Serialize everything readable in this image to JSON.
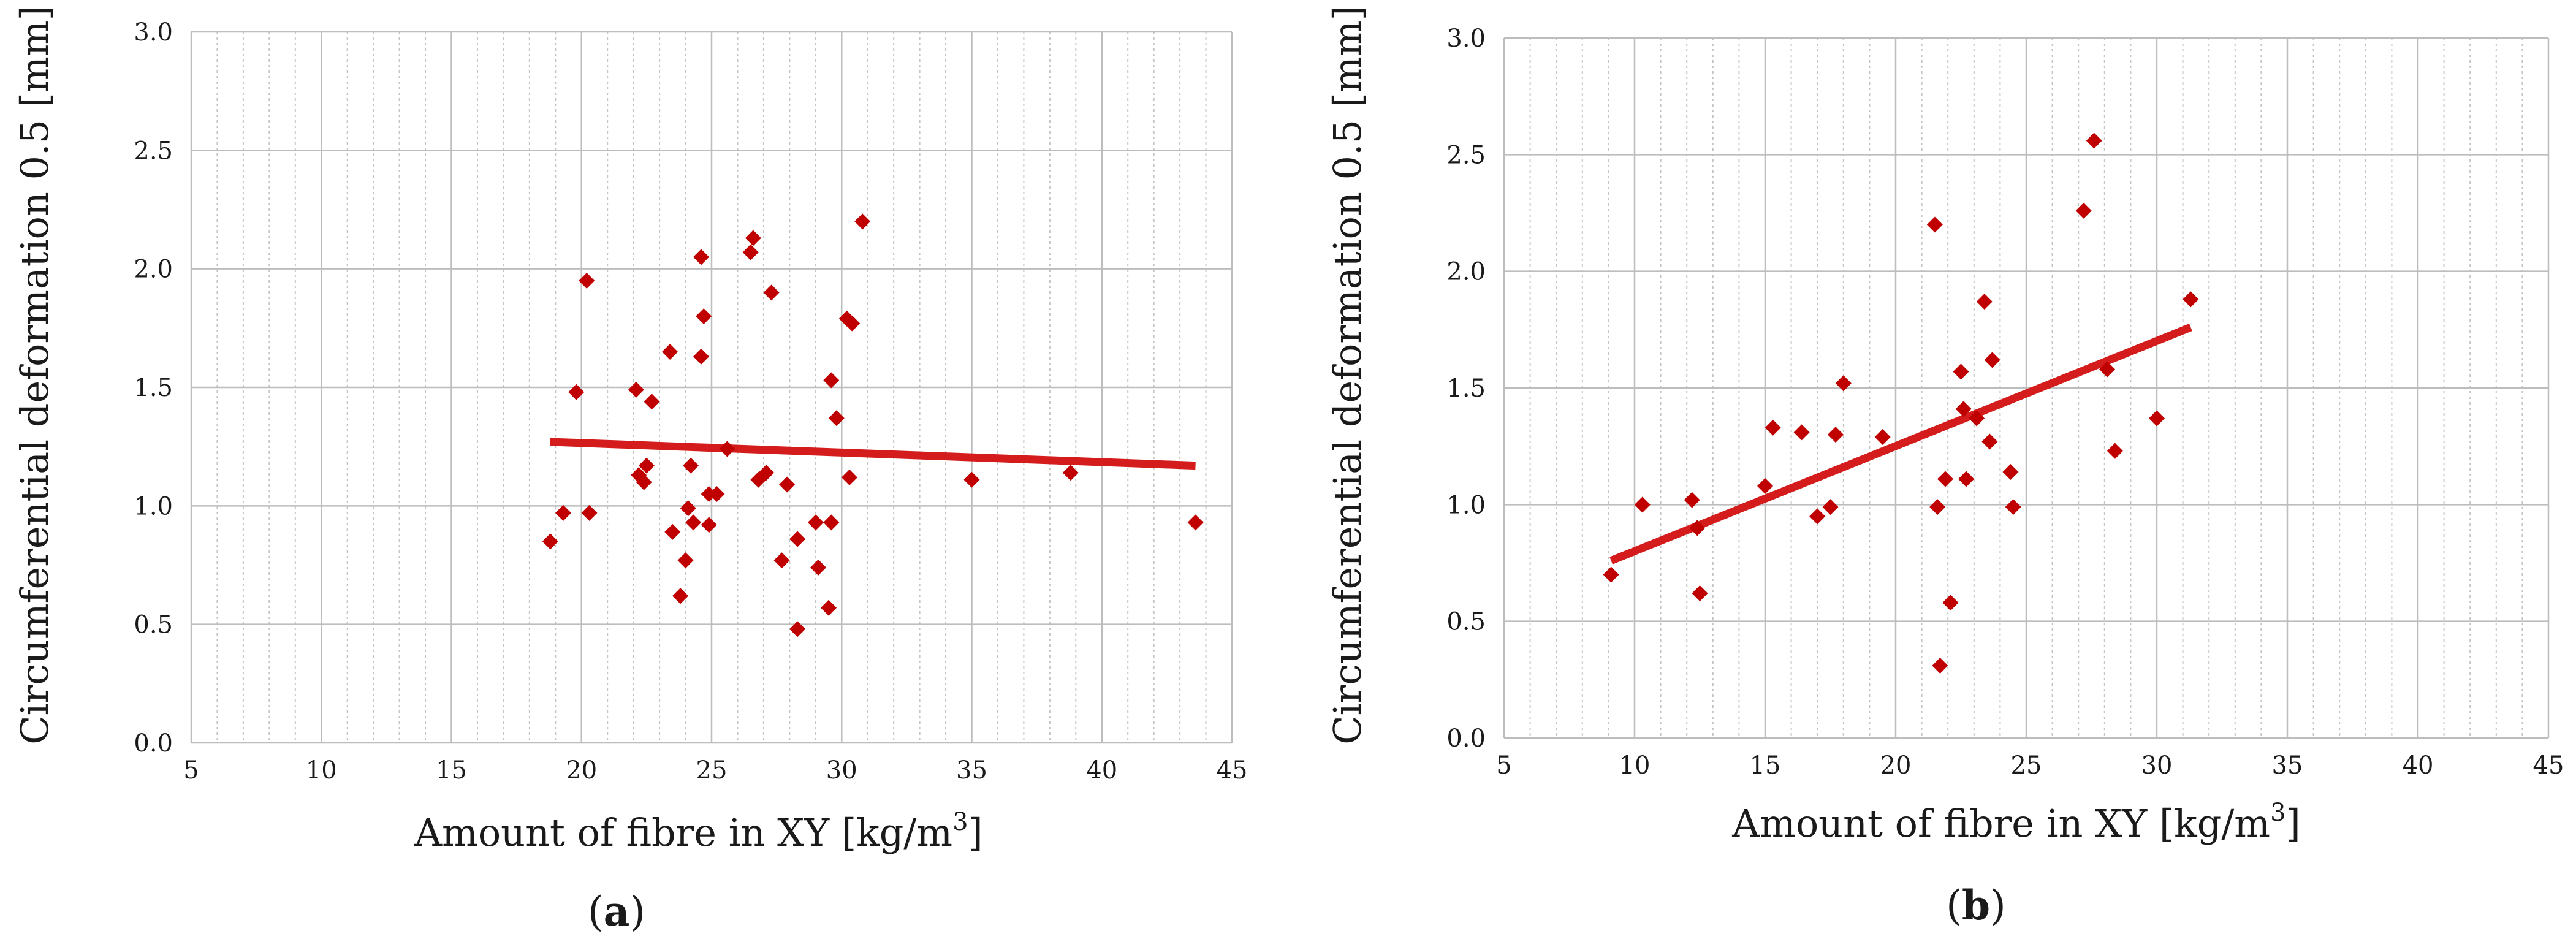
{
  "chart_data": [
    {
      "type": "scatter",
      "panel_label": "a",
      "xlabel": "Amount of fibre in XY [kg/m",
      "xlabel_sup": "3",
      "xlabel_end": "]",
      "ylabel": "Circumferential deformation 0.5 [mm]",
      "xlim": [
        5,
        45
      ],
      "ylim": [
        0,
        3
      ],
      "x_ticks": [
        5,
        10,
        15,
        20,
        25,
        30,
        35,
        40,
        45
      ],
      "y_ticks": [
        "0.0",
        "0.5",
        "1.0",
        "1.5",
        "2.0",
        "2.5",
        "3.0"
      ],
      "grid": true,
      "marker_color": "#c00000",
      "trendline_color": "#d41c1c",
      "trendline": {
        "x": [
          18.8,
          43.6
        ],
        "y": [
          1.27,
          1.17
        ]
      },
      "points": [
        [
          18.8,
          0.85
        ],
        [
          19.3,
          0.97
        ],
        [
          19.8,
          1.48
        ],
        [
          20.2,
          1.95
        ],
        [
          20.3,
          0.97
        ],
        [
          22.1,
          1.49
        ],
        [
          22.2,
          1.13
        ],
        [
          22.4,
          1.1
        ],
        [
          22.5,
          1.17
        ],
        [
          22.7,
          1.44
        ],
        [
          23.4,
          1.65
        ],
        [
          23.5,
          0.89
        ],
        [
          23.8,
          0.62
        ],
        [
          24.0,
          0.77
        ],
        [
          24.1,
          0.99
        ],
        [
          24.2,
          1.17
        ],
        [
          24.3,
          0.93
        ],
        [
          24.6,
          2.05
        ],
        [
          24.6,
          1.63
        ],
        [
          24.7,
          1.8
        ],
        [
          24.9,
          1.05
        ],
        [
          24.9,
          0.92
        ],
        [
          25.2,
          1.05
        ],
        [
          25.6,
          1.24
        ],
        [
          26.5,
          2.07
        ],
        [
          26.6,
          2.13
        ],
        [
          26.8,
          1.11
        ],
        [
          27.1,
          1.14
        ],
        [
          27.3,
          1.9
        ],
        [
          27.7,
          0.77
        ],
        [
          27.9,
          1.09
        ],
        [
          28.3,
          0.86
        ],
        [
          28.3,
          0.48
        ],
        [
          29.0,
          0.93
        ],
        [
          29.1,
          0.74
        ],
        [
          29.5,
          0.57
        ],
        [
          29.6,
          0.93
        ],
        [
          29.6,
          1.53
        ],
        [
          29.8,
          1.37
        ],
        [
          30.2,
          1.79
        ],
        [
          30.3,
          1.12
        ],
        [
          30.4,
          1.77
        ],
        [
          30.8,
          2.2
        ],
        [
          35.0,
          1.11
        ],
        [
          38.8,
          1.14
        ],
        [
          43.6,
          0.93
        ]
      ]
    },
    {
      "type": "scatter",
      "panel_label": "b",
      "xlabel": "Amount of fibre in XY [kg/m",
      "xlabel_sup": "3",
      "xlabel_end": "]",
      "ylabel": "Circumferential deformation 0.5 [mm]",
      "xlim": [
        5,
        45
      ],
      "ylim": [
        0,
        3
      ],
      "x_ticks": [
        5,
        10,
        15,
        20,
        25,
        30,
        35,
        40,
        45
      ],
      "y_ticks": [
        "0.0",
        "0.5",
        "1.0",
        "1.5",
        "2.0",
        "2.5",
        "3.0"
      ],
      "grid": true,
      "marker_color": "#c00000",
      "trendline_color": "#d41c1c",
      "trendline": {
        "x": [
          9.1,
          31.3
        ],
        "y": [
          0.76,
          1.76
        ]
      },
      "points": [
        [
          9.1,
          0.7
        ],
        [
          10.3,
          1.0
        ],
        [
          12.2,
          1.02
        ],
        [
          12.4,
          0.9
        ],
        [
          12.5,
          0.62
        ],
        [
          15.0,
          1.08
        ],
        [
          15.3,
          1.33
        ],
        [
          16.4,
          1.31
        ],
        [
          17.0,
          0.95
        ],
        [
          17.5,
          0.99
        ],
        [
          17.7,
          1.3
        ],
        [
          18.0,
          1.52
        ],
        [
          19.5,
          1.29
        ],
        [
          21.5,
          2.2
        ],
        [
          21.6,
          0.99
        ],
        [
          21.7,
          0.31
        ],
        [
          21.9,
          1.11
        ],
        [
          22.1,
          0.58
        ],
        [
          22.5,
          1.57
        ],
        [
          22.6,
          1.41
        ],
        [
          22.7,
          1.11
        ],
        [
          23.1,
          1.37
        ],
        [
          23.4,
          1.87
        ],
        [
          23.6,
          1.27
        ],
        [
          23.7,
          1.62
        ],
        [
          24.4,
          1.14
        ],
        [
          24.5,
          0.99
        ],
        [
          27.2,
          2.26
        ],
        [
          27.6,
          2.56
        ],
        [
          28.1,
          1.58
        ],
        [
          28.4,
          1.23
        ],
        [
          30.0,
          1.37
        ],
        [
          31.3,
          1.88
        ]
      ]
    }
  ]
}
